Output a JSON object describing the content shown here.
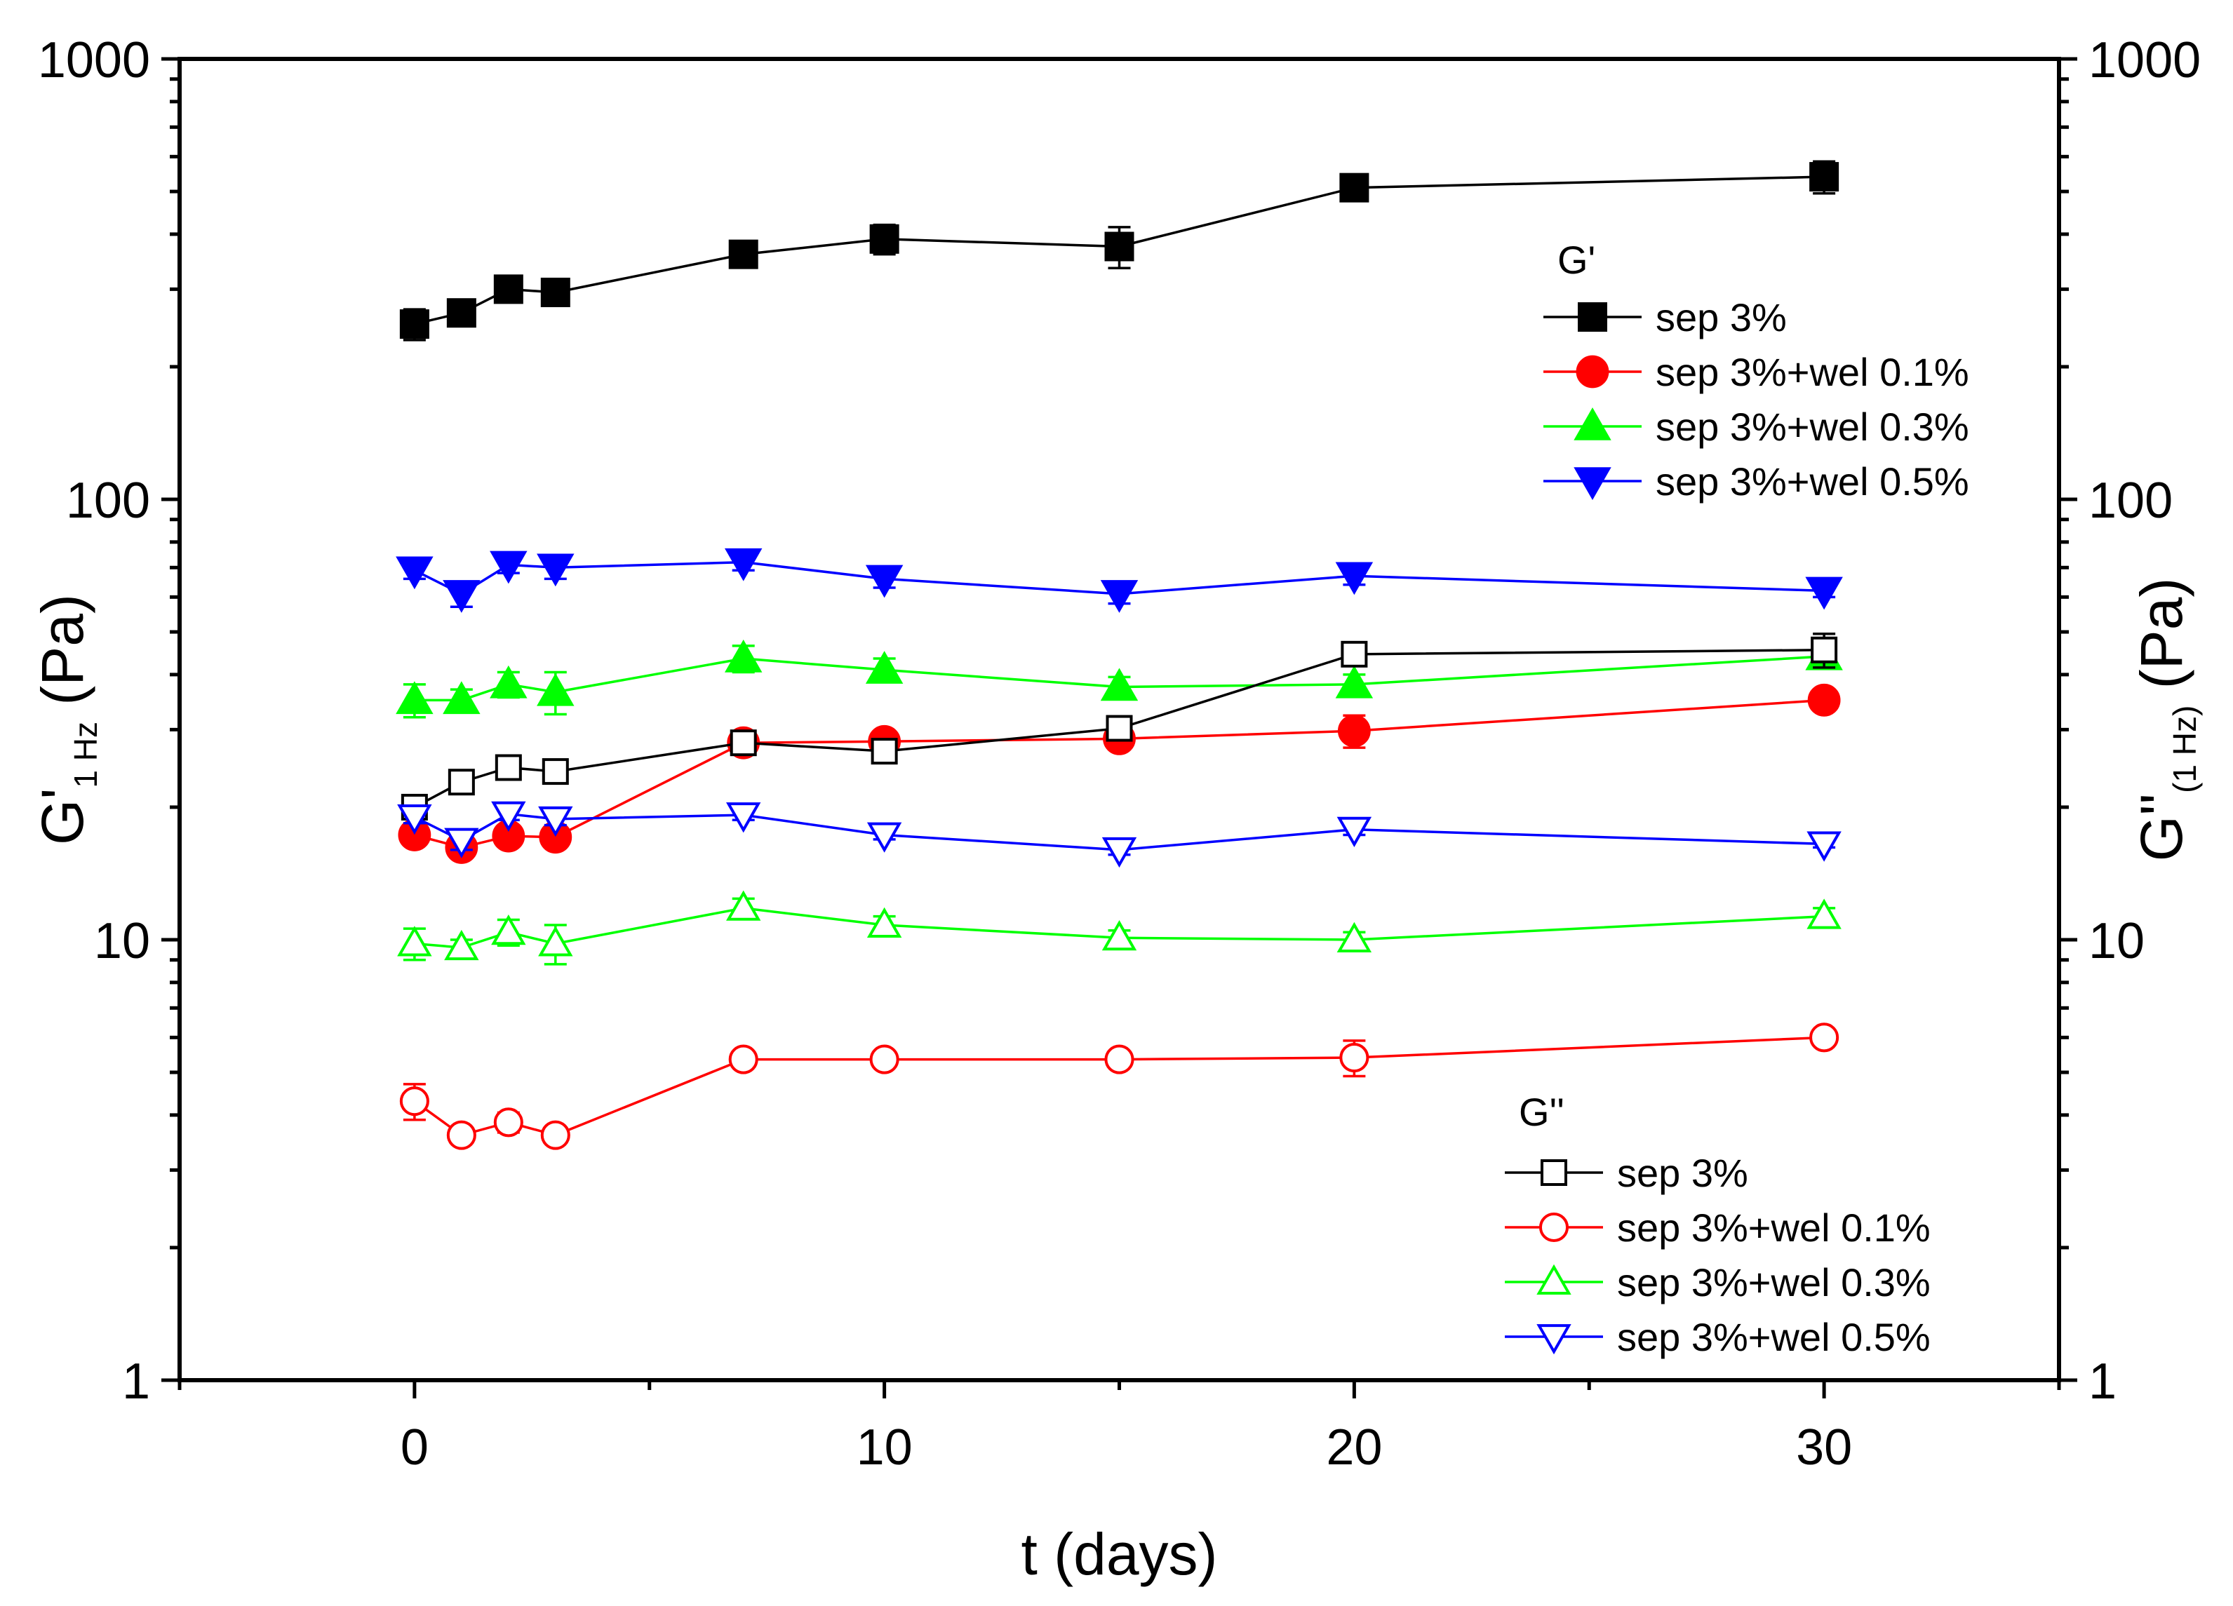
{
  "chart_data": {
    "type": "scatter",
    "xlabel": "t (days)",
    "ylabel_left": {
      "main": "G'",
      "sub": "1 Hz",
      "unit": " (Pa)"
    },
    "ylabel_right": {
      "main": "G''",
      "sub": "(1 Hz)",
      "unit": " (Pa)"
    },
    "xlim": [
      -5,
      35
    ],
    "ylim": [
      1,
      1000
    ],
    "yscale": "log",
    "x_ticks": [
      0,
      10,
      20,
      30
    ],
    "x_tick_labels": [
      "0",
      "10",
      "20",
      "30"
    ],
    "y_ticks": [
      1,
      10,
      100,
      1000
    ],
    "y_tick_labels": [
      "1",
      "10",
      "100",
      "1000"
    ],
    "x": [
      0,
      1,
      2,
      3,
      7,
      10,
      15,
      20,
      30
    ],
    "legend_gprime_title": "G'",
    "legend_gdouble_title": "G''",
    "series": [
      {
        "name": "sep 3%",
        "group": "G'",
        "color": "#000000",
        "marker": "square",
        "filled": true,
        "values": [
          250,
          265,
          300,
          295,
          360,
          390,
          375,
          510,
          540
        ],
        "err": [
          20,
          12,
          15,
          15,
          18,
          30,
          40,
          20,
          45
        ]
      },
      {
        "name": "sep 3%+wel 0.1%",
        "group": "G'",
        "color": "#ff0000",
        "marker": "circle",
        "filled": true,
        "values": [
          17.3,
          16.2,
          17.2,
          17.1,
          28,
          28.2,
          28.6,
          29.8,
          35
        ],
        "err": [
          0.6,
          0.6,
          0.5,
          0.5,
          0.8,
          0.8,
          0.8,
          2.5,
          1
        ]
      },
      {
        "name": "sep 3%+wel 0.3%",
        "group": "G'",
        "color": "#00ff00",
        "marker": "triangle-up",
        "filled": true,
        "values": [
          35,
          35,
          38,
          36.5,
          43.5,
          41,
          37.5,
          38,
          44
        ],
        "err": [
          3,
          2,
          2.5,
          4,
          3,
          2.5,
          2,
          2,
          2
        ]
      },
      {
        "name": "sep 3%+wel 0.5%",
        "group": "G'",
        "color": "#0000ff",
        "marker": "triangle-down",
        "filled": true,
        "values": [
          69,
          61,
          71,
          70,
          72,
          66,
          61,
          67,
          62
        ],
        "err": [
          3,
          4,
          3,
          4,
          3,
          3,
          3,
          3,
          2
        ]
      },
      {
        "name": "sep 3%",
        "group": "G''",
        "color": "#000000",
        "marker": "square",
        "filled": false,
        "values": [
          20,
          22.8,
          24.6,
          24.1,
          28,
          26.8,
          30.2,
          44.5,
          45.5
        ],
        "err": [
          0.6,
          0.6,
          1.2,
          0.8,
          1,
          0.8,
          0.8,
          1,
          4
        ]
      },
      {
        "name": "sep 3%+wel 0.1%",
        "group": "G''",
        "color": "#ff0000",
        "marker": "circle",
        "filled": false,
        "values": [
          4.3,
          3.6,
          3.85,
          3.6,
          5.35,
          5.35,
          5.35,
          5.4,
          6
        ],
        "err": [
          0.4,
          0.15,
          0.2,
          0.1,
          0.1,
          0.2,
          0.15,
          0.5,
          0.1
        ]
      },
      {
        "name": "sep 3%+wel 0.3%",
        "group": "G''",
        "color": "#00ff00",
        "marker": "triangle-up",
        "filled": false,
        "values": [
          9.8,
          9.6,
          10.4,
          9.8,
          11.8,
          10.8,
          10.1,
          10,
          11.3
        ],
        "err": [
          0.8,
          0.4,
          0.7,
          1,
          0.6,
          0.5,
          0.4,
          0.4,
          0.5
        ]
      },
      {
        "name": "sep 3%+wel 0.5%",
        "group": "G''",
        "color": "#0000ff",
        "marker": "triangle-down",
        "filled": false,
        "values": [
          19,
          16.8,
          19.3,
          18.8,
          19.2,
          17.3,
          16,
          17.8,
          16.5
        ],
        "err": [
          0.6,
          0.8,
          0.6,
          0.6,
          0.5,
          0.4,
          0.4,
          0.5,
          0.3
        ]
      }
    ]
  }
}
